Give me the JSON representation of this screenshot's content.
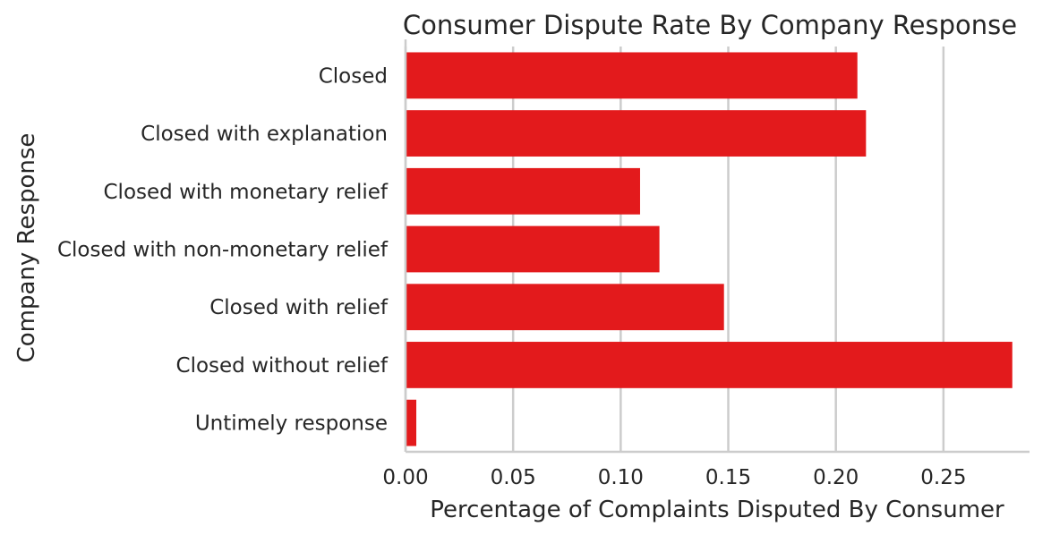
{
  "chart_data": {
    "type": "bar",
    "orientation": "horizontal",
    "title": "Consumer Dispute Rate By Company Response",
    "xlabel": "Percentage of Complaints Disputed By Consumer",
    "ylabel": "Company Response",
    "categories": [
      "Closed",
      "Closed with explanation",
      "Closed with monetary relief",
      "Closed with non-monetary relief",
      "Closed with relief",
      "Closed without relief",
      "Untimely response"
    ],
    "values": [
      0.21,
      0.214,
      0.109,
      0.118,
      0.148,
      0.282,
      0.005
    ],
    "xlim": [
      0,
      0.29
    ],
    "xticks": [
      "0.00",
      "0.05",
      "0.10",
      "0.15",
      "0.20",
      "0.25"
    ],
    "grid": "vertical",
    "bar_color": "#e31a1c"
  }
}
